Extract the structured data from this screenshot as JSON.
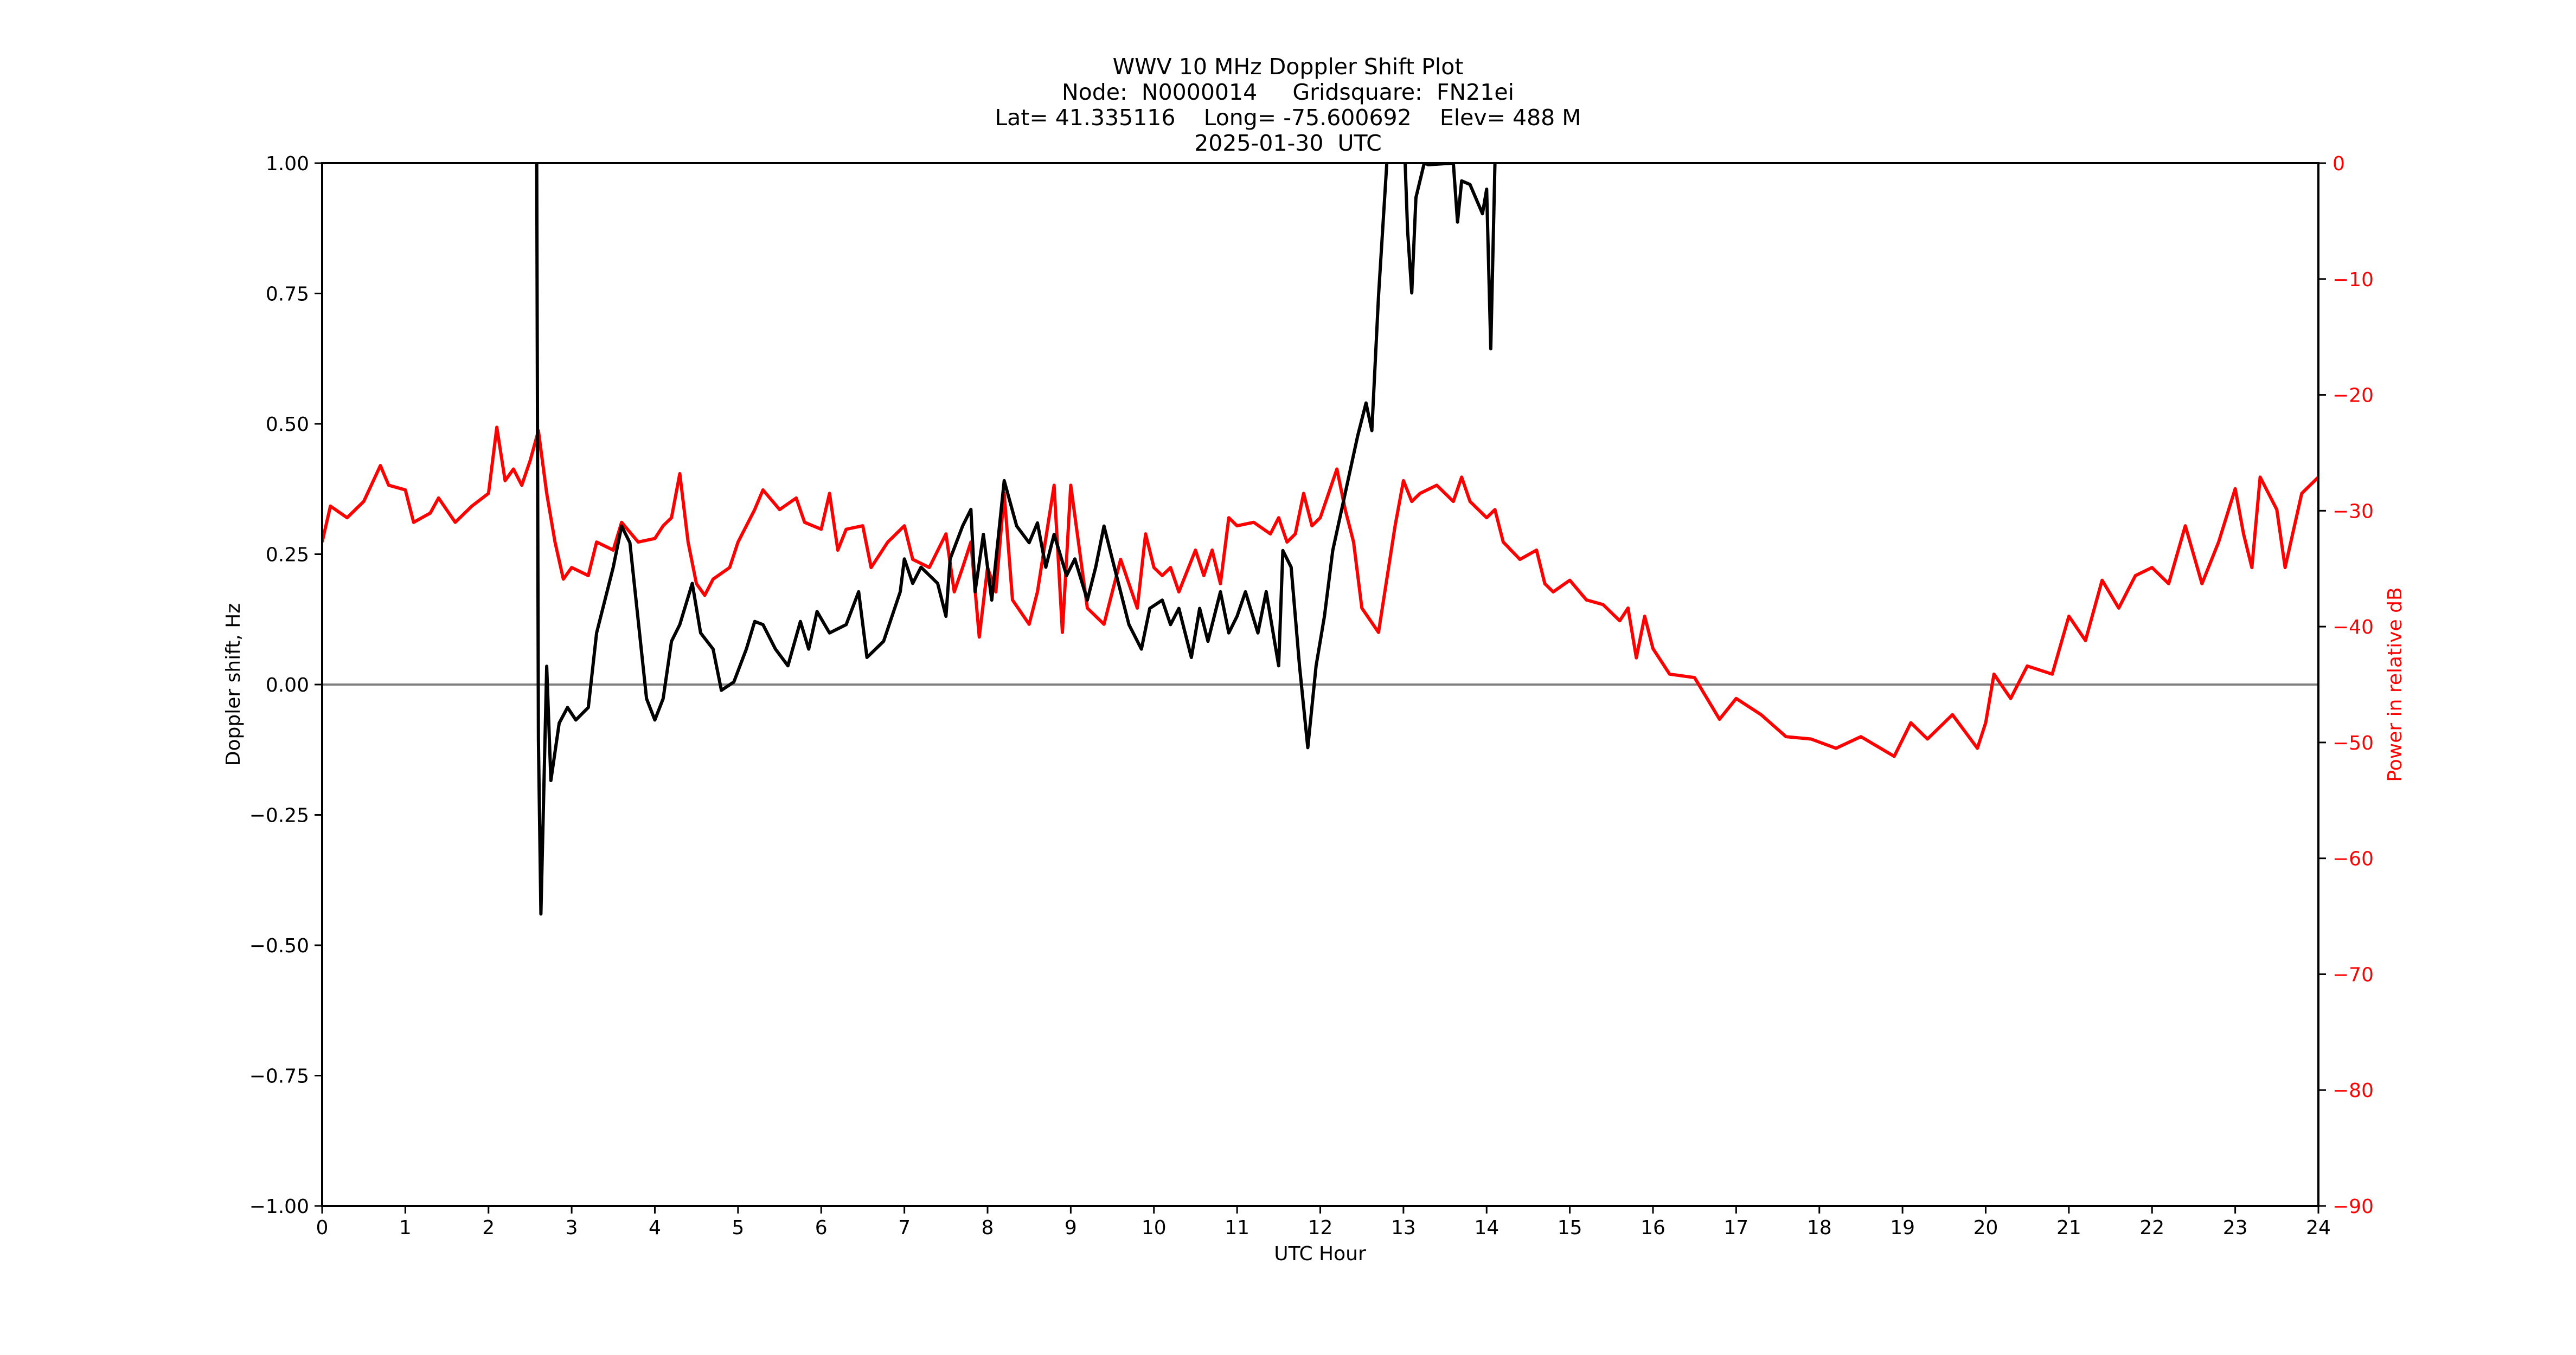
{
  "title": {
    "line1": "WWV 10 MHz Doppler Shift Plot",
    "line2": "Node:  N0000014     Gridsquare:  FN21ei",
    "line3": "Lat= 41.335116    Long= -75.600692    Elev= 488 M",
    "line4": "2025-01-30  UTC"
  },
  "colors": {
    "doppler": "#000000",
    "power": "#ff0000",
    "zero_line": "#808080",
    "axis": "#000000",
    "right_axis_text": "#ff0000"
  },
  "chart_data": {
    "type": "line",
    "title": "WWV 10 MHz Doppler Shift Plot",
    "subtitle": [
      "Node:  N0000014     Gridsquare:  FN21ei",
      "Lat= 41.335116    Long= -75.600692    Elev= 488 M",
      "2025-01-30  UTC"
    ],
    "xlabel": "UTC Hour",
    "ylabel": "Doppler shift, Hz",
    "y2label": "Power in relative dB",
    "xlim": [
      0,
      24
    ],
    "ylim": [
      -1.0,
      1.0
    ],
    "y2lim": [
      -90,
      0
    ],
    "grid": false,
    "legend": null,
    "x_ticks": [
      "0",
      "1",
      "2",
      "3",
      "4",
      "5",
      "6",
      "7",
      "8",
      "9",
      "10",
      "11",
      "12",
      "13",
      "14",
      "15",
      "16",
      "17",
      "18",
      "19",
      "20",
      "21",
      "22",
      "23",
      "24"
    ],
    "y_ticks": [
      "1.00",
      "0.75",
      "0.50",
      "0.25",
      "0.00",
      "−0.25",
      "−0.50",
      "−0.75",
      "−1.00"
    ],
    "y2_ticks": [
      "0",
      "−10",
      "−20",
      "−30",
      "−40",
      "−50",
      "−60",
      "−70",
      "−80",
      "−90"
    ],
    "hlines": [
      {
        "y": 0.0,
        "color": "#808080"
      }
    ],
    "series": [
      {
        "name": "Doppler shift (Hz)",
        "axis": "left",
        "color": "#000000",
        "points": [
          [
            2.55,
            1.2
          ],
          [
            2.58,
            1.0
          ],
          [
            2.6,
            -0.105
          ],
          [
            2.63,
            -0.44
          ],
          [
            2.7,
            0.035
          ],
          [
            2.75,
            -0.184
          ],
          [
            2.85,
            -0.074
          ],
          [
            2.95,
            -0.044
          ],
          [
            3.05,
            -0.068
          ],
          [
            3.2,
            -0.044
          ],
          [
            3.3,
            0.099
          ],
          [
            3.5,
            0.225
          ],
          [
            3.6,
            0.304
          ],
          [
            3.7,
            0.272
          ],
          [
            3.9,
            -0.027
          ],
          [
            4.0,
            -0.068
          ],
          [
            4.1,
            -0.027
          ],
          [
            4.2,
            0.083
          ],
          [
            4.3,
            0.115
          ],
          [
            4.45,
            0.194
          ],
          [
            4.55,
            0.099
          ],
          [
            4.7,
            0.068
          ],
          [
            4.8,
            -0.011
          ],
          [
            4.95,
            0.005
          ],
          [
            5.1,
            0.068
          ],
          [
            5.2,
            0.121
          ],
          [
            5.3,
            0.115
          ],
          [
            5.45,
            0.068
          ],
          [
            5.6,
            0.036
          ],
          [
            5.75,
            0.121
          ],
          [
            5.85,
            0.068
          ],
          [
            5.95,
            0.14
          ],
          [
            6.1,
            0.099
          ],
          [
            6.3,
            0.115
          ],
          [
            6.45,
            0.178
          ],
          [
            6.55,
            0.052
          ],
          [
            6.75,
            0.083
          ],
          [
            6.95,
            0.178
          ],
          [
            7.0,
            0.241
          ],
          [
            7.1,
            0.194
          ],
          [
            7.2,
            0.225
          ],
          [
            7.4,
            0.194
          ],
          [
            7.5,
            0.131
          ],
          [
            7.55,
            0.241
          ],
          [
            7.7,
            0.304
          ],
          [
            7.8,
            0.336
          ],
          [
            7.85,
            0.178
          ],
          [
            7.95,
            0.288
          ],
          [
            8.05,
            0.162
          ],
          [
            8.2,
            0.391
          ],
          [
            8.35,
            0.304
          ],
          [
            8.5,
            0.272
          ],
          [
            8.6,
            0.31
          ],
          [
            8.7,
            0.225
          ],
          [
            8.8,
            0.288
          ],
          [
            8.95,
            0.209
          ],
          [
            9.05,
            0.241
          ],
          [
            9.2,
            0.162
          ],
          [
            9.3,
            0.225
          ],
          [
            9.4,
            0.304
          ],
          [
            9.55,
            0.209
          ],
          [
            9.7,
            0.115
          ],
          [
            9.85,
            0.068
          ],
          [
            9.95,
            0.146
          ],
          [
            10.1,
            0.162
          ],
          [
            10.2,
            0.115
          ],
          [
            10.3,
            0.146
          ],
          [
            10.45,
            0.052
          ],
          [
            10.55,
            0.146
          ],
          [
            10.65,
            0.083
          ],
          [
            10.8,
            0.178
          ],
          [
            10.9,
            0.099
          ],
          [
            11.0,
            0.131
          ],
          [
            11.1,
            0.178
          ],
          [
            11.25,
            0.099
          ],
          [
            11.35,
            0.178
          ],
          [
            11.5,
            0.036
          ],
          [
            11.55,
            0.257
          ],
          [
            11.65,
            0.225
          ],
          [
            11.75,
            0.036
          ],
          [
            11.85,
            -0.121
          ],
          [
            11.95,
            0.036
          ],
          [
            12.05,
            0.131
          ],
          [
            12.15,
            0.257
          ],
          [
            12.3,
            0.367
          ],
          [
            12.45,
            0.477
          ],
          [
            12.55,
            0.54
          ],
          [
            12.62,
            0.487
          ],
          [
            12.7,
            0.745
          ],
          [
            12.8,
            1.0
          ],
          [
            13.0,
            1.09
          ],
          [
            13.05,
            0.871
          ],
          [
            13.1,
            0.751
          ],
          [
            13.15,
            0.934
          ],
          [
            13.25,
            1.0
          ],
          [
            13.3,
            0.997
          ],
          [
            13.6,
            1.0
          ],
          [
            13.65,
            0.887
          ],
          [
            13.7,
            0.966
          ],
          [
            13.8,
            0.959
          ],
          [
            13.95,
            0.903
          ],
          [
            14.0,
            0.95
          ],
          [
            14.05,
            0.644
          ],
          [
            14.1,
            1.0
          ],
          [
            14.15,
            1.15
          ]
        ]
      },
      {
        "name": "Power (relative dB)",
        "axis": "right",
        "color": "#ff0000",
        "points": [
          [
            0.0,
            -32.7
          ],
          [
            0.1,
            -29.6
          ],
          [
            0.3,
            -30.6
          ],
          [
            0.5,
            -29.2
          ],
          [
            0.7,
            -26.1
          ],
          [
            0.8,
            -27.8
          ],
          [
            1.0,
            -28.2
          ],
          [
            1.1,
            -31.0
          ],
          [
            1.3,
            -30.2
          ],
          [
            1.4,
            -28.9
          ],
          [
            1.6,
            -31.0
          ],
          [
            1.8,
            -29.6
          ],
          [
            2.0,
            -28.5
          ],
          [
            2.1,
            -22.8
          ],
          [
            2.2,
            -27.4
          ],
          [
            2.3,
            -26.4
          ],
          [
            2.4,
            -27.8
          ],
          [
            2.5,
            -25.7
          ],
          [
            2.6,
            -23.1
          ],
          [
            2.7,
            -28.5
          ],
          [
            2.8,
            -32.7
          ],
          [
            2.9,
            -35.9
          ],
          [
            3.0,
            -34.9
          ],
          [
            3.2,
            -35.6
          ],
          [
            3.3,
            -32.7
          ],
          [
            3.5,
            -33.4
          ],
          [
            3.6,
            -31.0
          ],
          [
            3.8,
            -32.7
          ],
          [
            4.0,
            -32.4
          ],
          [
            4.1,
            -31.3
          ],
          [
            4.2,
            -30.6
          ],
          [
            4.3,
            -26.8
          ],
          [
            4.4,
            -32.7
          ],
          [
            4.5,
            -36.3
          ],
          [
            4.6,
            -37.3
          ],
          [
            4.7,
            -35.9
          ],
          [
            4.9,
            -34.9
          ],
          [
            5.0,
            -32.7
          ],
          [
            5.2,
            -29.9
          ],
          [
            5.3,
            -28.2
          ],
          [
            5.5,
            -29.9
          ],
          [
            5.7,
            -28.9
          ],
          [
            5.8,
            -31.0
          ],
          [
            6.0,
            -31.6
          ],
          [
            6.1,
            -28.5
          ],
          [
            6.2,
            -33.4
          ],
          [
            6.3,
            -31.6
          ],
          [
            6.5,
            -31.3
          ],
          [
            6.6,
            -34.9
          ],
          [
            6.8,
            -32.7
          ],
          [
            7.0,
            -31.3
          ],
          [
            7.1,
            -34.2
          ],
          [
            7.3,
            -34.9
          ],
          [
            7.5,
            -32.0
          ],
          [
            7.6,
            -37.0
          ],
          [
            7.7,
            -34.9
          ],
          [
            7.8,
            -32.7
          ],
          [
            7.9,
            -40.9
          ],
          [
            8.0,
            -34.9
          ],
          [
            8.1,
            -37.0
          ],
          [
            8.2,
            -28.5
          ],
          [
            8.3,
            -37.7
          ],
          [
            8.5,
            -39.8
          ],
          [
            8.6,
            -37.0
          ],
          [
            8.8,
            -27.8
          ],
          [
            8.9,
            -40.5
          ],
          [
            9.0,
            -27.8
          ],
          [
            9.2,
            -38.4
          ],
          [
            9.4,
            -39.8
          ],
          [
            9.6,
            -34.2
          ],
          [
            9.8,
            -38.4
          ],
          [
            9.9,
            -32.0
          ],
          [
            10.0,
            -34.9
          ],
          [
            10.1,
            -35.6
          ],
          [
            10.2,
            -34.9
          ],
          [
            10.3,
            -37.0
          ],
          [
            10.5,
            -33.4
          ],
          [
            10.6,
            -35.6
          ],
          [
            10.7,
            -33.4
          ],
          [
            10.8,
            -36.3
          ],
          [
            10.9,
            -30.6
          ],
          [
            11.0,
            -31.3
          ],
          [
            11.2,
            -31.0
          ],
          [
            11.4,
            -32.0
          ],
          [
            11.5,
            -30.6
          ],
          [
            11.6,
            -32.7
          ],
          [
            11.7,
            -32.0
          ],
          [
            11.8,
            -28.5
          ],
          [
            11.9,
            -31.3
          ],
          [
            12.0,
            -30.6
          ],
          [
            12.2,
            -26.4
          ],
          [
            12.3,
            -29.9
          ],
          [
            12.4,
            -32.7
          ],
          [
            12.5,
            -38.4
          ],
          [
            12.7,
            -40.5
          ],
          [
            12.9,
            -31.3
          ],
          [
            13.0,
            -27.4
          ],
          [
            13.1,
            -29.2
          ],
          [
            13.2,
            -28.5
          ],
          [
            13.4,
            -27.8
          ],
          [
            13.6,
            -29.2
          ],
          [
            13.7,
            -27.1
          ],
          [
            13.8,
            -29.2
          ],
          [
            14.0,
            -30.6
          ],
          [
            14.1,
            -29.9
          ],
          [
            14.2,
            -32.7
          ],
          [
            14.4,
            -34.2
          ],
          [
            14.6,
            -33.4
          ],
          [
            14.7,
            -36.3
          ],
          [
            14.8,
            -37.0
          ],
          [
            15.0,
            -36.0
          ],
          [
            15.2,
            -37.7
          ],
          [
            15.4,
            -38.1
          ],
          [
            15.6,
            -39.5
          ],
          [
            15.7,
            -38.4
          ],
          [
            15.8,
            -42.7
          ],
          [
            15.9,
            -39.1
          ],
          [
            16.0,
            -41.9
          ],
          [
            16.2,
            -44.1
          ],
          [
            16.5,
            -44.4
          ],
          [
            16.8,
            -48.0
          ],
          [
            17.0,
            -46.2
          ],
          [
            17.3,
            -47.6
          ],
          [
            17.6,
            -49.5
          ],
          [
            17.9,
            -49.7
          ],
          [
            18.2,
            -50.5
          ],
          [
            18.5,
            -49.5
          ],
          [
            18.9,
            -51.2
          ],
          [
            19.1,
            -48.3
          ],
          [
            19.3,
            -49.7
          ],
          [
            19.6,
            -47.6
          ],
          [
            19.9,
            -50.5
          ],
          [
            20.0,
            -48.3
          ],
          [
            20.1,
            -44.1
          ],
          [
            20.3,
            -46.2
          ],
          [
            20.5,
            -43.4
          ],
          [
            20.8,
            -44.1
          ],
          [
            21.0,
            -39.1
          ],
          [
            21.2,
            -41.2
          ],
          [
            21.4,
            -36.0
          ],
          [
            21.6,
            -38.4
          ],
          [
            21.8,
            -35.6
          ],
          [
            22.0,
            -34.9
          ],
          [
            22.2,
            -36.3
          ],
          [
            22.4,
            -31.3
          ],
          [
            22.6,
            -36.3
          ],
          [
            22.8,
            -32.7
          ],
          [
            23.0,
            -28.1
          ],
          [
            23.1,
            -32.0
          ],
          [
            23.2,
            -34.9
          ],
          [
            23.3,
            -27.1
          ],
          [
            23.5,
            -29.9
          ],
          [
            23.6,
            -34.9
          ],
          [
            23.8,
            -28.5
          ],
          [
            24.0,
            -27.1
          ]
        ]
      }
    ]
  },
  "axes": {
    "xlabel": "UTC Hour",
    "ylabel": "Doppler shift, Hz",
    "y2label": "Power in relative dB"
  }
}
